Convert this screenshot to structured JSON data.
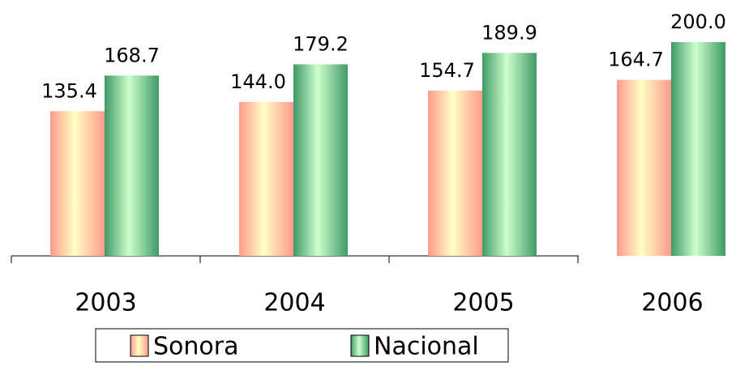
{
  "chart_data": {
    "type": "bar",
    "categories": [
      "2003",
      "2004",
      "2005",
      "2006"
    ],
    "series": [
      {
        "name": "Sonora",
        "color": "#ff9a8c",
        "values": [
          135.4,
          144.0,
          154.7,
          164.7
        ],
        "value_labels": [
          "135.4",
          "144.0",
          "154.7",
          "164.7"
        ]
      },
      {
        "name": "Nacional",
        "color": "#3f9a66",
        "values": [
          168.7,
          179.2,
          189.9,
          200.0
        ],
        "value_labels": [
          "168.7",
          "179.2",
          "189.9",
          "200.0"
        ]
      }
    ],
    "ylim": [
      0,
      200
    ]
  }
}
